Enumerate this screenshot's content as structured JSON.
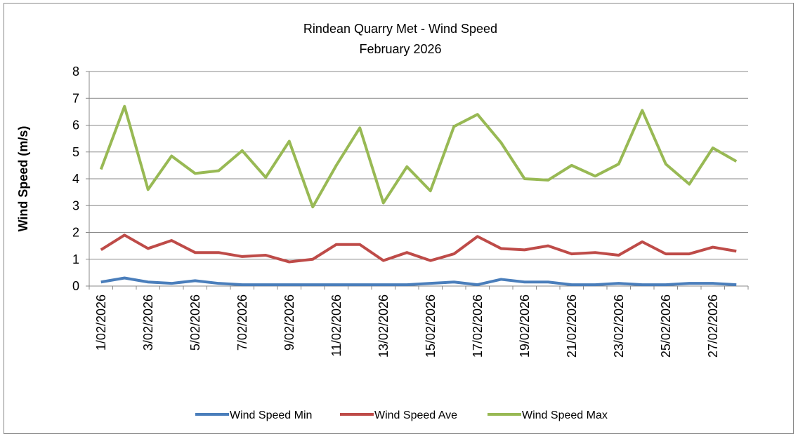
{
  "chart_data": {
    "type": "line",
    "title": "Rindean Quarry Met -  Wind Speed",
    "subtitle": "February 2026",
    "y_label": "Wind Speed (m/s)",
    "categories": [
      "1/02/2026",
      null,
      "3/02/2026",
      null,
      "5/02/2026",
      null,
      "7/02/2026",
      null,
      "9/02/2026",
      null,
      "11/02/2026",
      null,
      "13/02/2026",
      null,
      "15/02/2026",
      null,
      "17/02/2026",
      null,
      "19/02/2026",
      null,
      "21/02/2026",
      null,
      "23/02/2026",
      null,
      "25/02/2026",
      null,
      "27/02/2026",
      null
    ],
    "series": [
      {
        "name": "Wind Speed Min",
        "color": "#4a7ebb",
        "values": [
          0.15,
          0.3,
          0.15,
          0.1,
          0.2,
          0.1,
          0.05,
          0.05,
          0.05,
          0.05,
          0.05,
          0.05,
          0.05,
          0.05,
          0.1,
          0.15,
          0.05,
          0.25,
          0.15,
          0.15,
          0.05,
          0.05,
          0.1,
          0.05,
          0.05,
          0.1,
          0.1,
          0.05
        ]
      },
      {
        "name": "Wind Speed Ave",
        "color": "#be4b48",
        "values": [
          1.35,
          1.9,
          1.4,
          1.7,
          1.25,
          1.25,
          1.1,
          1.15,
          0.9,
          1.0,
          1.55,
          1.55,
          0.95,
          1.25,
          0.95,
          1.2,
          1.85,
          1.4,
          1.35,
          1.5,
          1.2,
          1.25,
          1.15,
          1.65,
          1.2,
          1.2,
          1.45,
          1.3
        ]
      },
      {
        "name": "Wind Speed Max",
        "color": "#98b954",
        "values": [
          4.35,
          6.7,
          3.6,
          4.85,
          4.2,
          4.3,
          5.05,
          4.05,
          5.4,
          2.95,
          4.5,
          5.9,
          3.1,
          4.45,
          3.55,
          5.95,
          6.4,
          5.35,
          4.0,
          3.95,
          4.5,
          4.1,
          4.55,
          6.55,
          4.55,
          3.8,
          5.15,
          4.65
        ]
      }
    ],
    "ylim": [
      0,
      8
    ],
    "yticks": [
      0,
      1,
      2,
      3,
      4,
      5,
      6,
      7,
      8
    ],
    "grid": true,
    "legend": "bottom"
  }
}
